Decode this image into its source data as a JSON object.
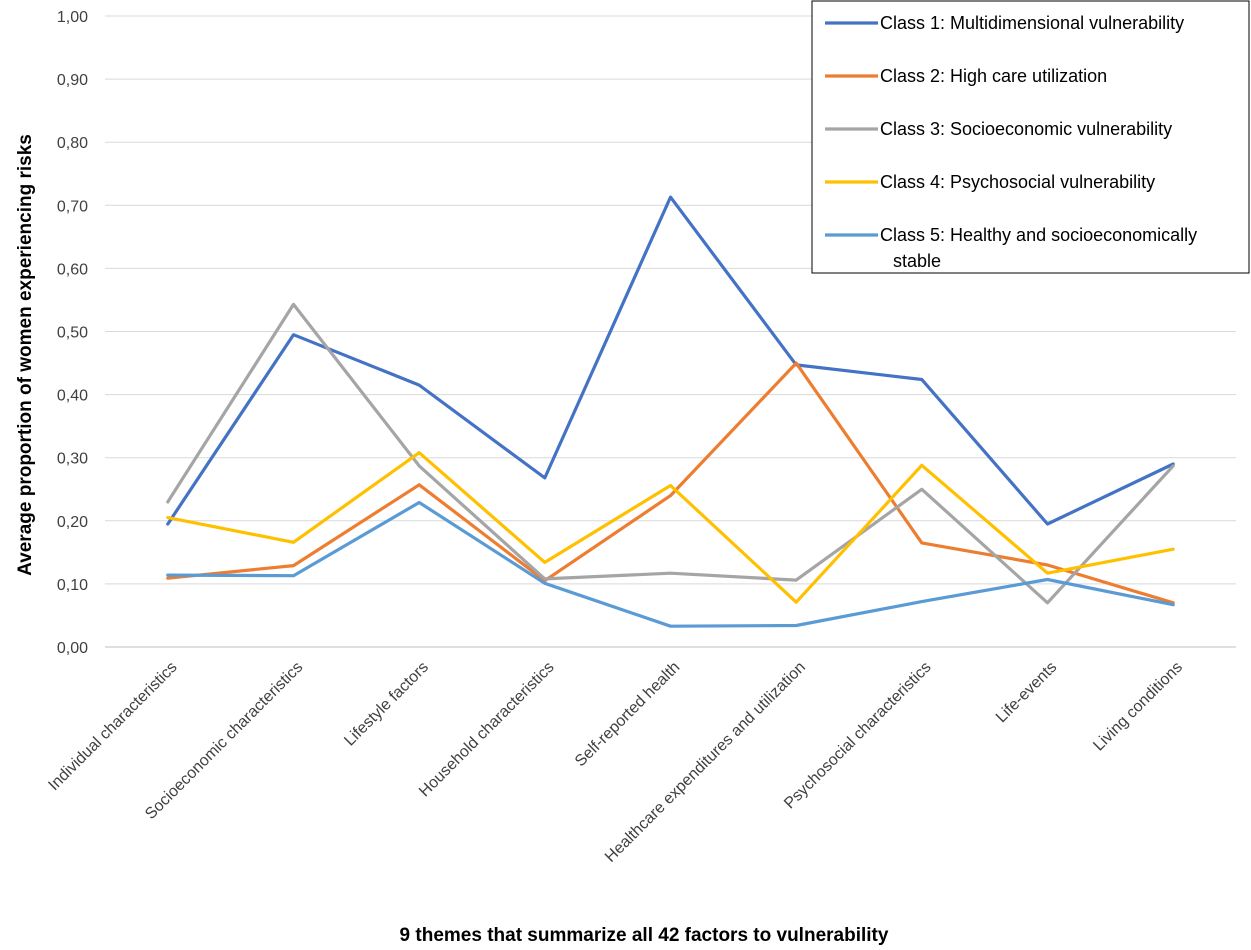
{
  "chart_data": {
    "type": "line",
    "title": "",
    "xlabel": "9 themes that summarize all 42 factors to vulnerability",
    "ylabel": "Average proportion of women experiencing risks",
    "ylim": [
      0,
      1
    ],
    "y_ticks": [
      "0,00",
      "0,10",
      "0,20",
      "0,30",
      "0,40",
      "0,50",
      "0,60",
      "0,70",
      "0,80",
      "0,90",
      "1,00"
    ],
    "grid": "horizontal",
    "legend_position": "top-right",
    "categories": [
      "Individual characteristics",
      "Socioeconomic characteristics",
      "Lifestyle factors",
      "Household characteristics",
      "Self-reported health",
      "Healthcare expenditures and utilization",
      "Psychosocial characteristics",
      "Life-events",
      "Living conditions"
    ],
    "series": [
      {
        "name": "Class 1: Multidimensional vulnerability",
        "legend_lines": [
          "Class 1: Multidimensional vulnerability"
        ],
        "color": "#4472C4",
        "values": [
          0.195,
          0.495,
          0.415,
          0.268,
          0.713,
          0.447,
          0.424,
          0.195,
          0.29
        ]
      },
      {
        "name": "Class 2: High care utilization",
        "legend_lines": [
          "Class 2: High care utilization"
        ],
        "color": "#ED7D31",
        "values": [
          0.109,
          0.129,
          0.257,
          0.105,
          0.24,
          0.45,
          0.165,
          0.13,
          0.07
        ]
      },
      {
        "name": "Class 3: Socioeconomic vulnerability",
        "legend_lines": [
          "Class 3: Socioeconomic vulnerability"
        ],
        "color": "#A5A5A5",
        "values": [
          0.23,
          0.543,
          0.287,
          0.108,
          0.117,
          0.106,
          0.25,
          0.07,
          0.287
        ]
      },
      {
        "name": "Class 4: Psychosocial vulnerability",
        "legend_lines": [
          "Class 4: Psychosocial vulnerability"
        ],
        "color": "#FFC000",
        "values": [
          0.205,
          0.166,
          0.308,
          0.134,
          0.256,
          0.071,
          0.288,
          0.117,
          0.155
        ]
      },
      {
        "name": "Class 5: Healthy and socioeconomically stable",
        "legend_lines": [
          "Class 5: Healthy and socioeconomically",
          "stable"
        ],
        "color": "#5B9BD5",
        "values": [
          0.114,
          0.113,
          0.229,
          0.101,
          0.033,
          0.034,
          0.072,
          0.107,
          0.067
        ]
      }
    ]
  }
}
